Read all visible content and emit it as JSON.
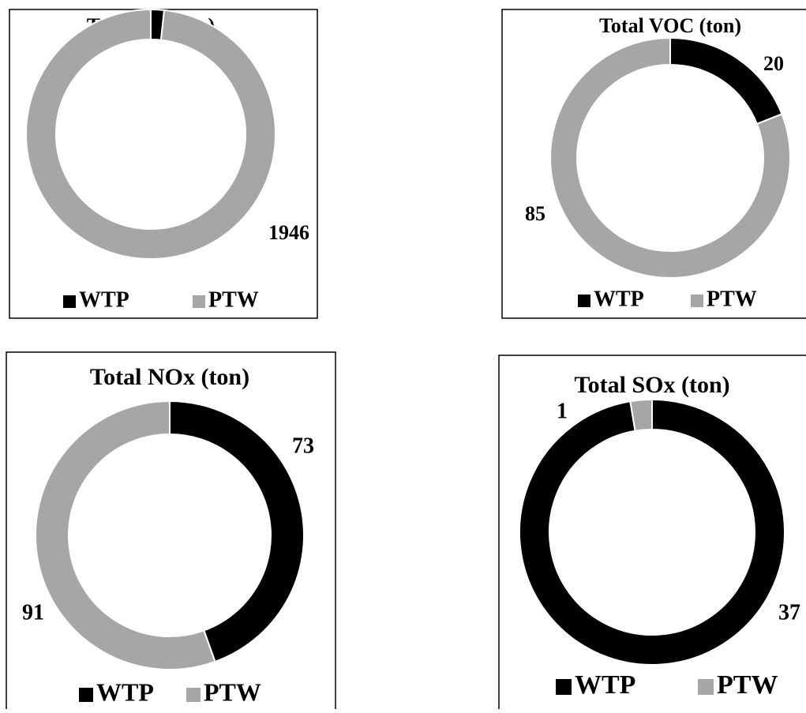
{
  "chart_data": [
    {
      "type": "donut",
      "title": "Total CO (ton)",
      "categories": [
        "WTP",
        "PTW"
      ],
      "values": [
        34,
        1946
      ],
      "colors": [
        "#000000",
        "#a6a6a6"
      ],
      "legend": "bottom"
    },
    {
      "type": "donut",
      "title": "Total VOC (ton)",
      "categories": [
        "WTP",
        "PTW"
      ],
      "values": [
        20,
        85
      ],
      "colors": [
        "#000000",
        "#a6a6a6"
      ],
      "legend": "bottom"
    },
    {
      "type": "donut",
      "title": "Total NOx (ton)",
      "categories": [
        "WTP",
        "PTW"
      ],
      "values": [
        73,
        91
      ],
      "colors": [
        "#000000",
        "#a6a6a6"
      ],
      "legend": "bottom"
    },
    {
      "type": "donut",
      "title": "Total SOx (ton)",
      "categories": [
        "WTP",
        "PTW"
      ],
      "values": [
        37,
        1
      ],
      "colors": [
        "#000000",
        "#a6a6a6"
      ],
      "legend": "bottom"
    }
  ]
}
